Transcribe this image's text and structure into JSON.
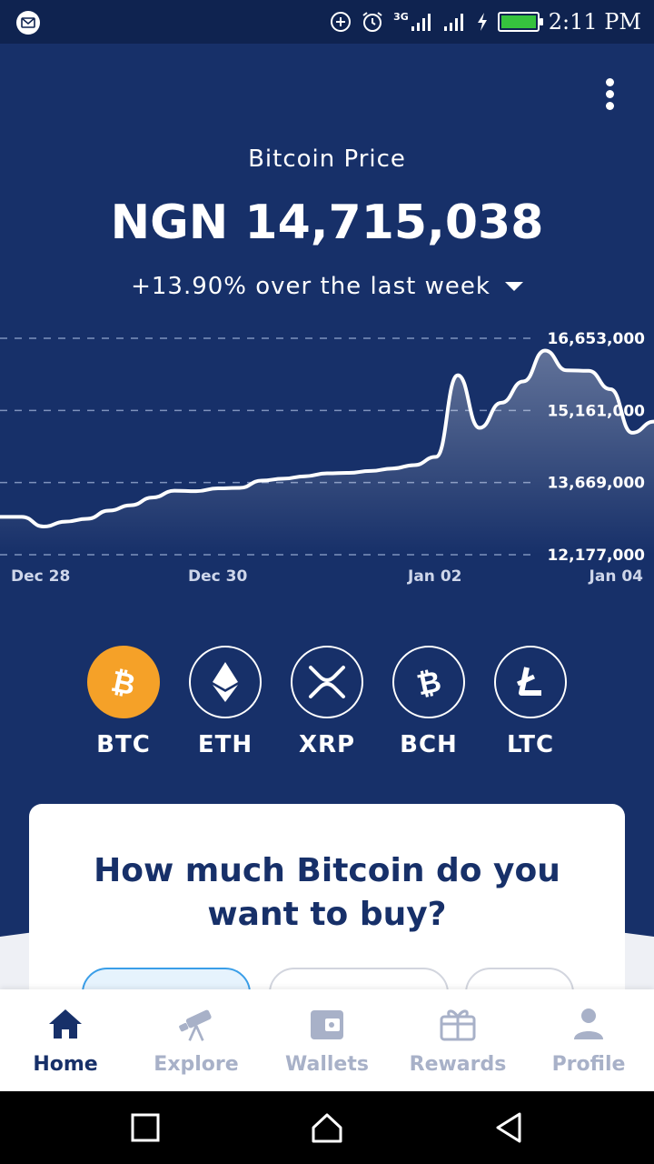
{
  "status_bar": {
    "time": "2:11 PM",
    "network": "3G",
    "icons": [
      "mail-icon",
      "add-circle-icon",
      "alarm-icon",
      "signal-icon",
      "signal-icon",
      "charging-icon",
      "battery-icon"
    ]
  },
  "header": {
    "title": "Bitcoin Price",
    "price": "NGN 14,715,038",
    "change": "+13.90% over the last week"
  },
  "chart_data": {
    "type": "area",
    "y_ticks": [
      "16,653,000",
      "15,161,000",
      "13,669,000",
      "12,177,000"
    ],
    "x_ticks": [
      "Dec 28",
      "Dec 30",
      "Jan 02",
      "Jan 04"
    ],
    "ylim": [
      12177000,
      16653000
    ],
    "grid": "horizontal-dashed",
    "series": [
      {
        "values": [
          12960000,
          12960000,
          12760000,
          12860000,
          12920000,
          13090000,
          13200000,
          13360000,
          13500000,
          13490000,
          13550000,
          13560000,
          13710000,
          13750000,
          13800000,
          13860000,
          13870000,
          13910000,
          13960000,
          14030000,
          14200000,
          15890000,
          14800000,
          15320000,
          15760000,
          16400000,
          15990000,
          15980000,
          15600000,
          14700000,
          14930000
        ]
      }
    ],
    "color": "#ffffff"
  },
  "coins": [
    {
      "label": "BTC",
      "icon": "bitcoin-icon",
      "active": true
    },
    {
      "label": "ETH",
      "icon": "ethereum-icon",
      "active": false
    },
    {
      "label": "XRP",
      "icon": "xrp-icon",
      "active": false
    },
    {
      "label": "BCH",
      "icon": "bitcoin-cash-icon",
      "active": false
    },
    {
      "label": "LTC",
      "icon": "litecoin-icon",
      "active": false
    }
  ],
  "buy_card": {
    "title_line1": "How much Bitcoin do you",
    "title_line2": "want to buy?"
  },
  "tabs": [
    {
      "label": "Home",
      "icon": "home-icon",
      "active": true
    },
    {
      "label": "Explore",
      "icon": "telescope-icon",
      "active": false
    },
    {
      "label": "Wallets",
      "icon": "wallet-icon",
      "active": false
    },
    {
      "label": "Rewards",
      "icon": "gift-icon",
      "active": false
    },
    {
      "label": "Profile",
      "icon": "person-icon",
      "active": false
    }
  ],
  "colors": {
    "background": "#173069",
    "accent_btc": "#f5a128",
    "active_tab": "#173069",
    "inactive_tab": "#a8b1c8"
  }
}
